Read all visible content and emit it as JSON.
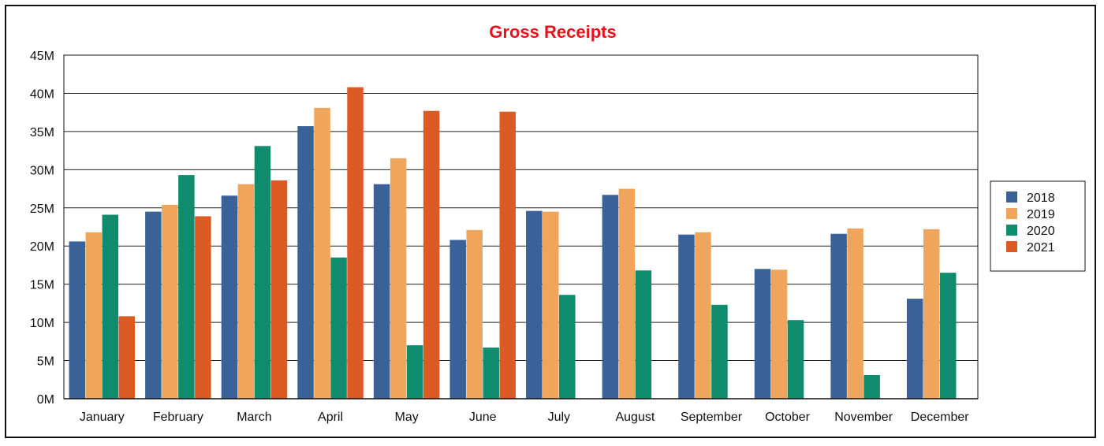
{
  "chart_data": {
    "type": "bar",
    "title": "Gross Receipts",
    "title_color": "#e8111b",
    "xlabel": "",
    "ylabel": "",
    "ylim": [
      0,
      45000000
    ],
    "yticks": [
      0,
      5000000,
      10000000,
      15000000,
      20000000,
      25000000,
      30000000,
      35000000,
      40000000,
      45000000
    ],
    "ytick_labels": [
      "0M",
      "5M",
      "10M",
      "15M",
      "20M",
      "25M",
      "30M",
      "35M",
      "40M",
      "45M"
    ],
    "grid": true,
    "legend_position": "right",
    "categories": [
      "January",
      "February",
      "March",
      "April",
      "May",
      "June",
      "July",
      "August",
      "September",
      "October",
      "November",
      "December"
    ],
    "series": [
      {
        "name": "2018",
        "color": "#3b6298",
        "values": [
          20.6,
          24.5,
          26.6,
          35.7,
          28.1,
          20.8,
          24.6,
          26.7,
          21.5,
          17.0,
          21.6,
          13.1
        ]
      },
      {
        "name": "2019",
        "color": "#f0a55c",
        "values": [
          21.8,
          25.4,
          28.1,
          38.1,
          31.5,
          22.1,
          24.5,
          27.5,
          21.8,
          16.9,
          22.3,
          22.2
        ]
      },
      {
        "name": "2020",
        "color": "#0e8c6d",
        "values": [
          24.1,
          29.3,
          33.1,
          18.5,
          7.0,
          6.7,
          13.6,
          16.8,
          12.3,
          10.3,
          3.1,
          16.5
        ]
      },
      {
        "name": "2021",
        "color": "#dc5a23",
        "values": [
          10.8,
          23.9,
          28.6,
          40.8,
          37.7,
          37.6,
          null,
          null,
          null,
          null,
          null,
          null
        ]
      }
    ],
    "value_unit_multiplier": 1000000
  }
}
